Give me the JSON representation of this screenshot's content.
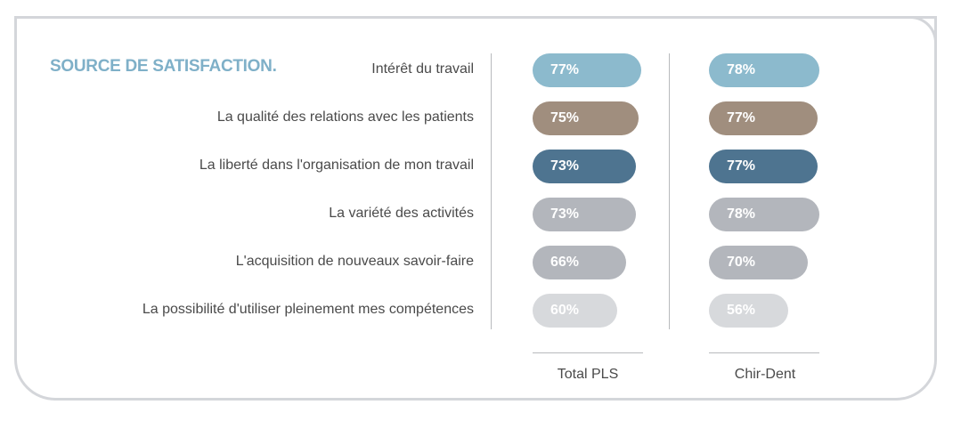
{
  "chart_data": {
    "type": "bar",
    "title": "SOURCE DE SATISFACTION.",
    "categories": [
      "Intérêt du travail",
      "La qualité des relations avec les patients",
      "La liberté dans l'organisation de mon travail",
      "La variété des activités",
      "L'acquisition de nouveaux savoir-faire",
      "La possibilité d'utiliser pleinement mes compétences"
    ],
    "series": [
      {
        "name": "Total PLS",
        "values": [
          77,
          75,
          73,
          73,
          66,
          60
        ],
        "labels": [
          "77%",
          "75%",
          "73%",
          "73%",
          "66%",
          "60%"
        ]
      },
      {
        "name": "Chir-Dent",
        "values": [
          78,
          77,
          77,
          78,
          70,
          56
        ],
        "labels": [
          "78%",
          "77%",
          "77%",
          "78%",
          "70%",
          "56%"
        ]
      }
    ],
    "colors": [
      "#8cbacd",
      "#a08e7e",
      "#4e7490",
      "#b3b6bc",
      "#b3b6bc",
      "#d7d9dc"
    ],
    "xlabel": "",
    "ylabel": "",
    "unit": "%"
  }
}
